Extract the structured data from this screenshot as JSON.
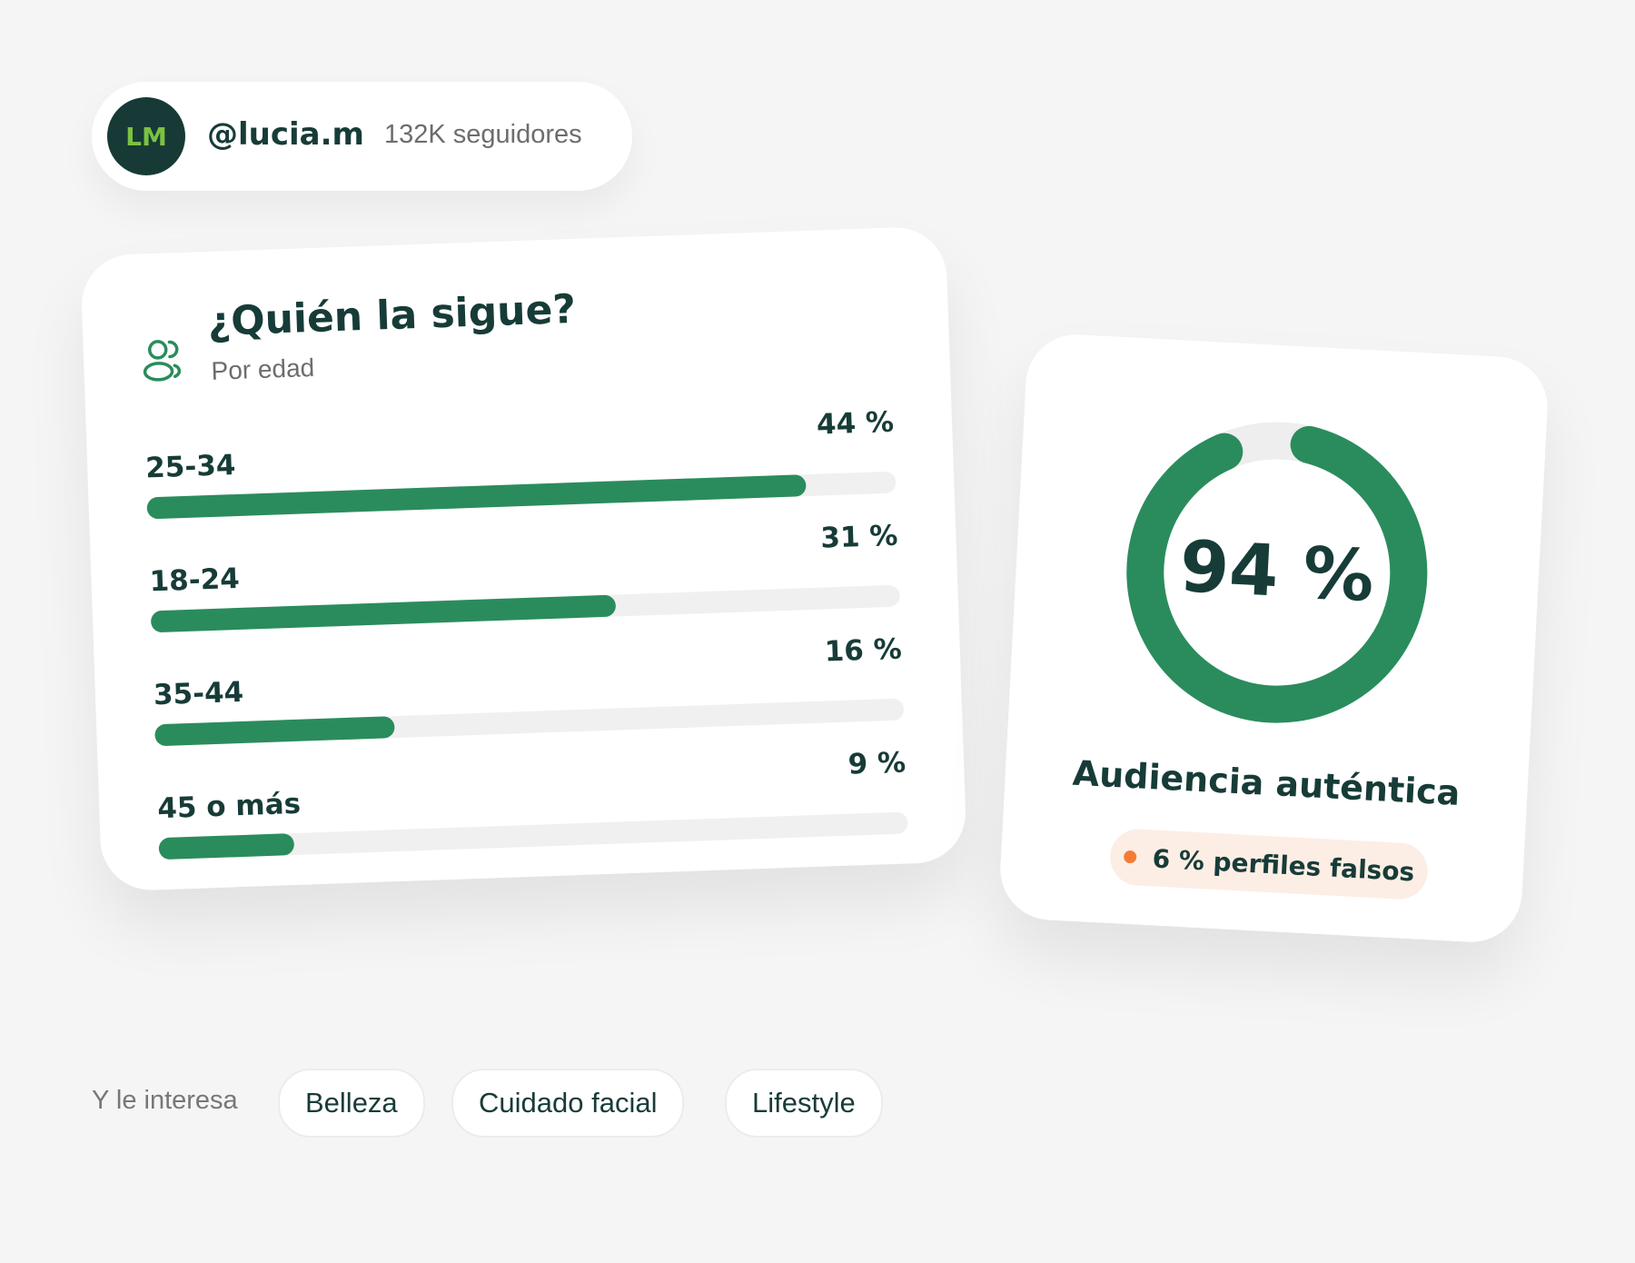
{
  "profile": {
    "initials": "LM",
    "handle": "@lucia.m",
    "followers": "132K seguidores"
  },
  "chart_data": [
    {
      "type": "bar",
      "title": "¿Quién la sigue?",
      "subtitle": "Por edad",
      "categories": [
        "25-34",
        "18-24",
        "35-44",
        "45 o más"
      ],
      "values": [
        44,
        31,
        16,
        9
      ],
      "value_labels": [
        "44 %",
        "31 %",
        "16 %",
        "9 %"
      ],
      "color": "#2a8c5c",
      "xlim": [
        0,
        50
      ]
    },
    {
      "type": "donut",
      "value": 94,
      "value_label": "94 %",
      "range": [
        0,
        100
      ],
      "color": "#2a8c5c",
      "title": "Audiencia auténtica",
      "note": "6 % perfiles falsos"
    }
  ],
  "interests": {
    "label": "Y le interesa",
    "tags": [
      "Belleza",
      "Cuidado facial",
      "Lifestyle"
    ]
  }
}
